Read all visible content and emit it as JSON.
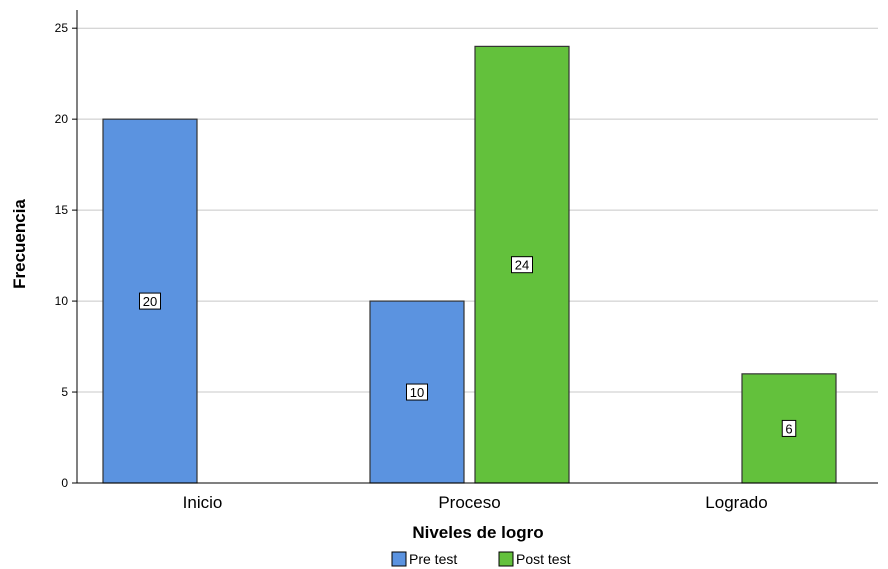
{
  "chart_data": {
    "type": "bar",
    "xlabel": "Niveles de logro",
    "ylabel": "Frecuencia",
    "categories": [
      "Inicio",
      "Proceso",
      "Logrado"
    ],
    "series": [
      {
        "name": "Pre test",
        "values": [
          20,
          10,
          null
        ],
        "color": "#5b93e0"
      },
      {
        "name": "Post test",
        "values": [
          null,
          24,
          6
        ],
        "color": "#63c13c"
      }
    ],
    "ylim": [
      0,
      26
    ],
    "yticks": [
      0,
      5,
      10,
      15,
      20,
      25
    ],
    "grid": true,
    "legend": "bottom-center",
    "data_labels": true
  }
}
